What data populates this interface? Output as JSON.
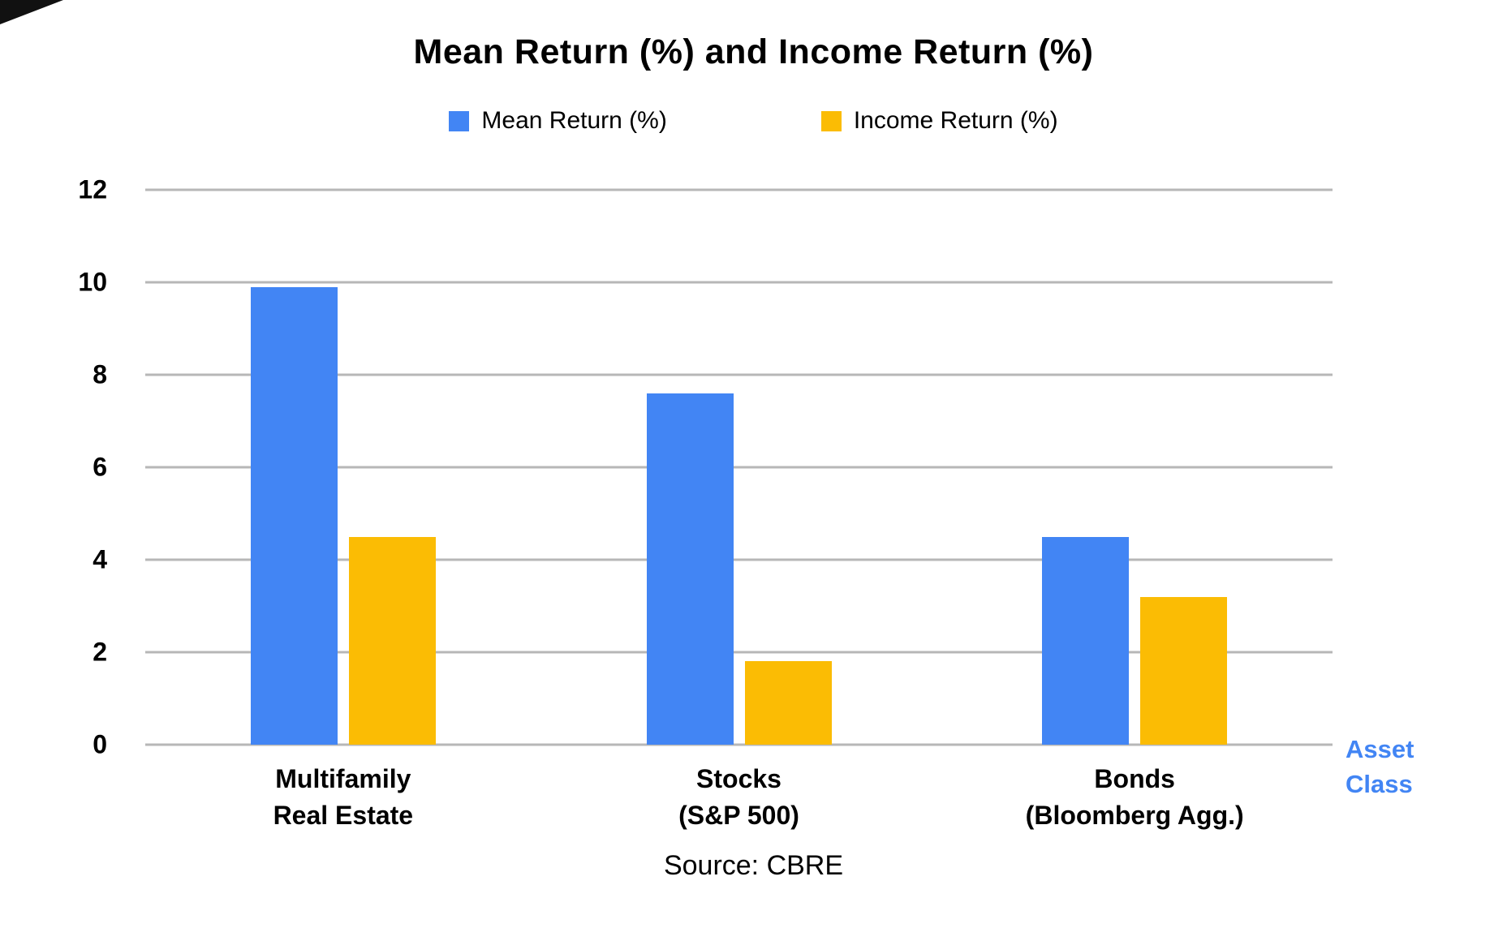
{
  "chart_data": {
    "type": "bar",
    "title": "Mean Return (%) and Income Return (%)",
    "categories": [
      [
        "Multifamily",
        "Real Estate"
      ],
      [
        "Stocks",
        "(S&P 500)"
      ],
      [
        "Bonds",
        "(Bloomberg Agg.)"
      ]
    ],
    "series": [
      {
        "name": "Mean Return (%)",
        "color": "#4285F4",
        "values": [
          9.9,
          7.6,
          4.5
        ]
      },
      {
        "name": "Income Return (%)",
        "color": "#FBBC04",
        "values": [
          4.5,
          1.8,
          3.2
        ]
      }
    ],
    "ylim": [
      0,
      12
    ],
    "ytick_step": 2,
    "grid": true,
    "legend_position": "top",
    "xlabel": "Asset Class",
    "xlabel_lines": [
      "Asset",
      "Class"
    ],
    "xlabel_color": "#4285F4",
    "gridline_color": "#b7b7b7",
    "source": "Source: CBRE"
  }
}
